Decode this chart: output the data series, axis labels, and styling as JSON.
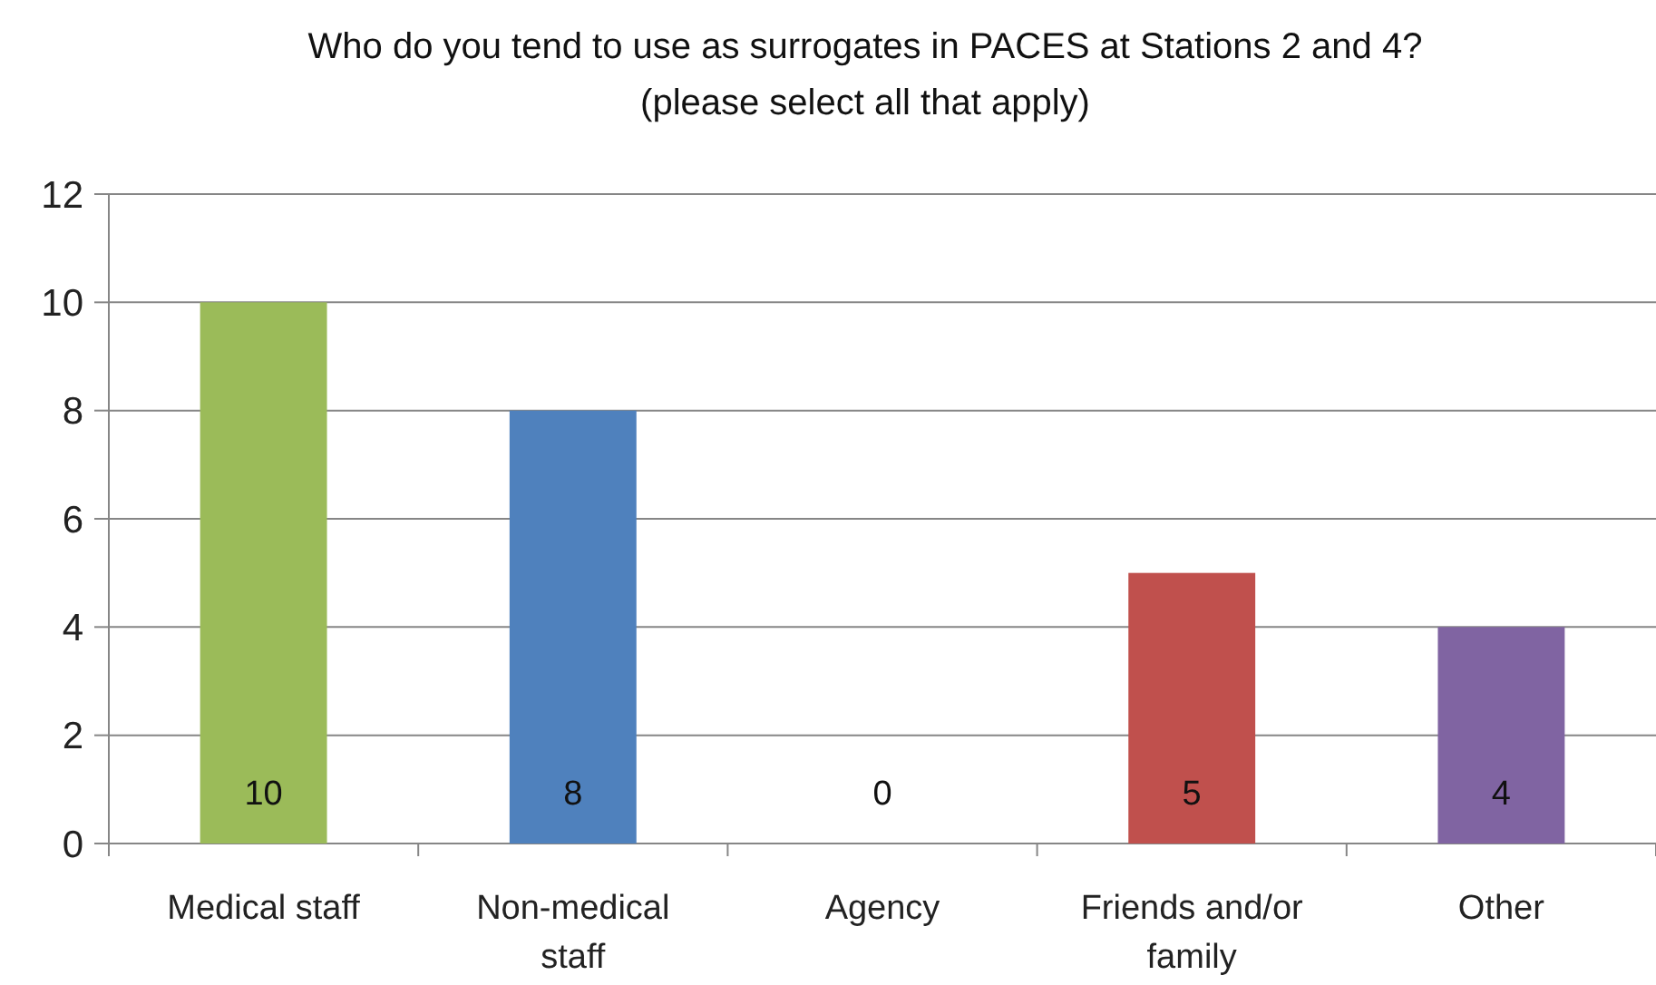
{
  "chart_data": {
    "type": "bar",
    "title": "Who do you tend to use as surrogates in PACES at Stations 2 and 4?\n(please select all that apply)",
    "categories": [
      "Medical staff",
      "Non-medical staff",
      "Agency",
      "Friends and/or family",
      "Other"
    ],
    "values": [
      10,
      8,
      0,
      5,
      4
    ],
    "colors": [
      "#9bbb59",
      "#4f81bd",
      "#4bacc6",
      "#c0504d",
      "#8064a2"
    ],
    "ylim": [
      0,
      12
    ],
    "yticks": [
      0,
      2,
      4,
      6,
      8,
      10,
      12
    ],
    "grid": "y",
    "data_labels": true
  }
}
